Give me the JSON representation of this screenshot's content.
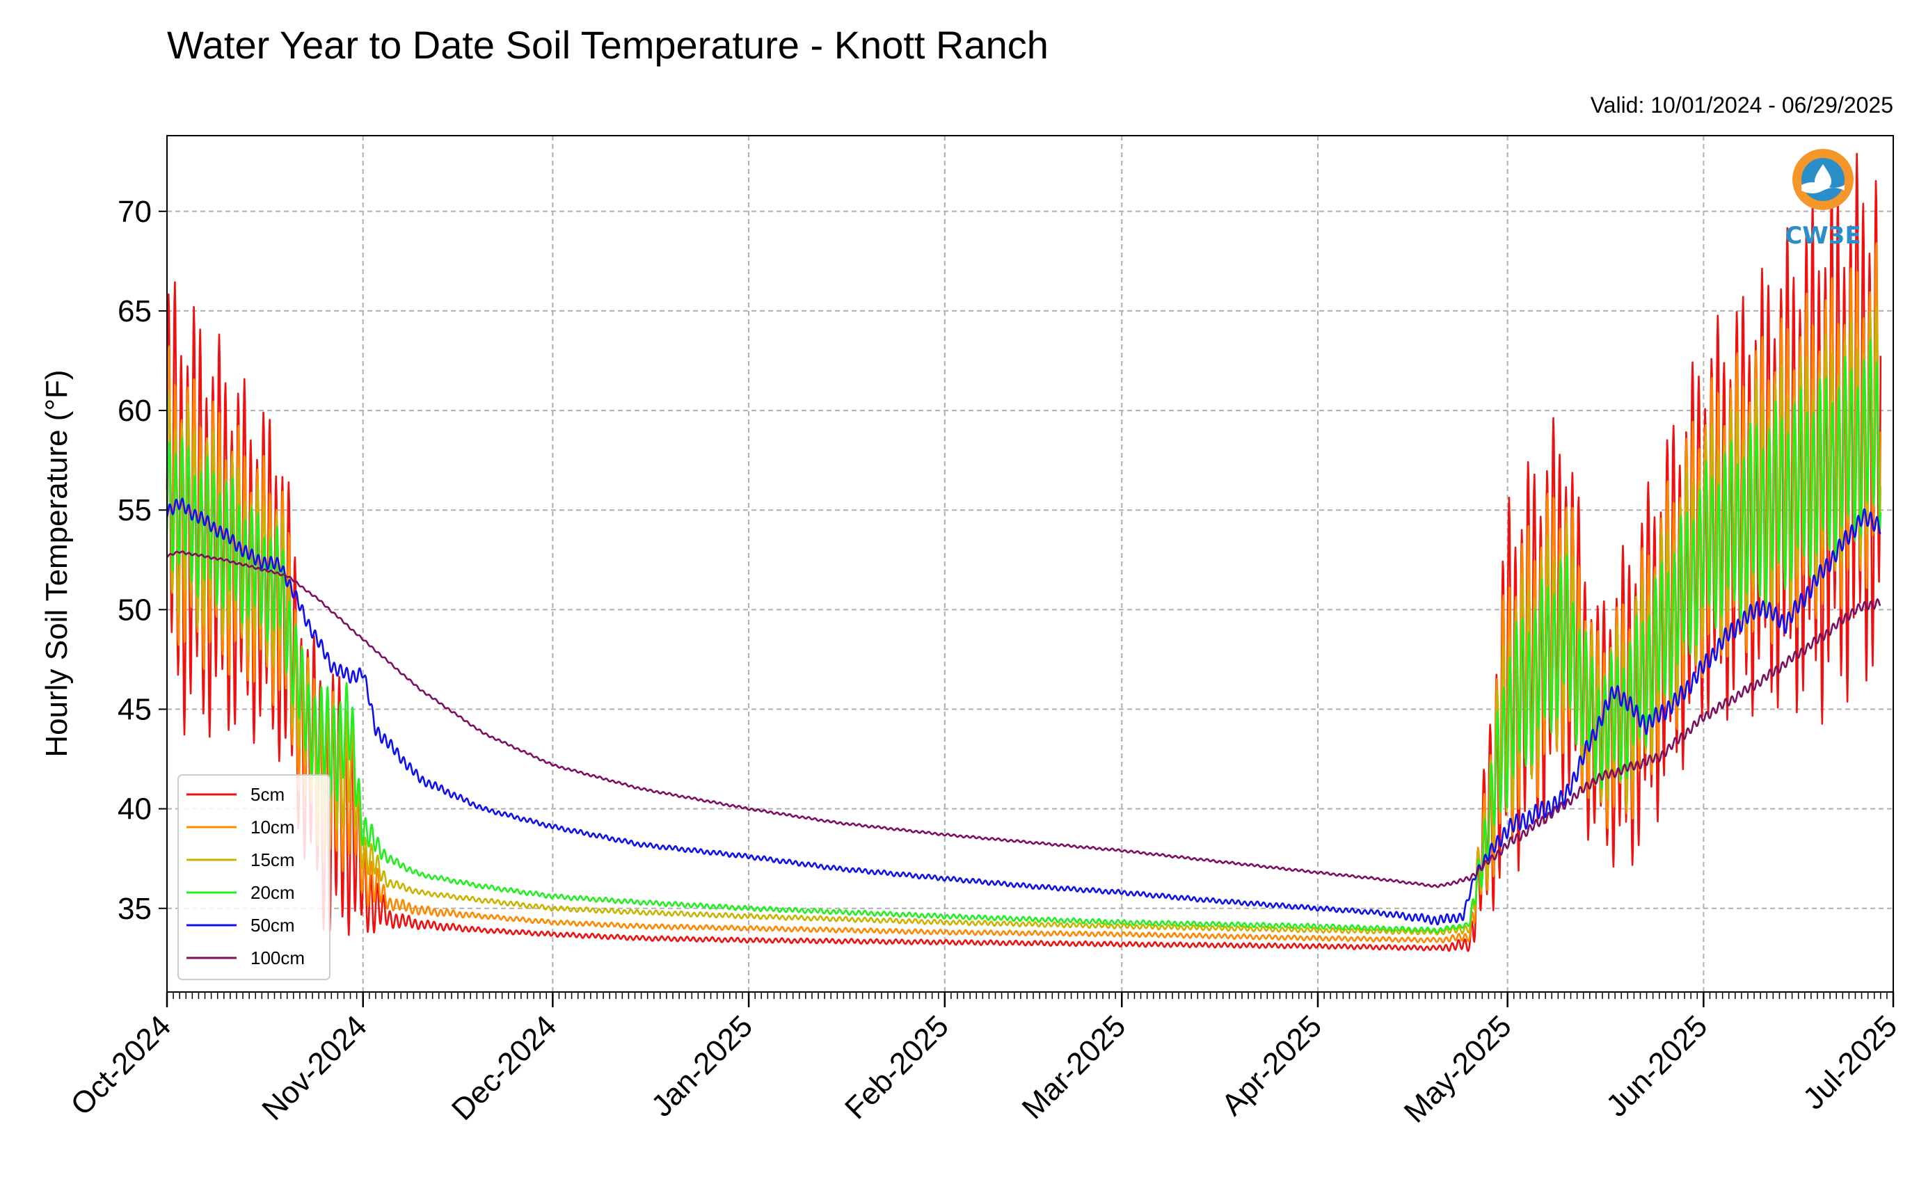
{
  "chart_data": {
    "type": "line",
    "title": "Water Year to Date Soil Temperature - Knott Ranch",
    "subtitle": "Valid: 10/01/2024 - 06/29/2025",
    "xlabel": "",
    "ylabel": "Hourly Soil Temperature (°F)",
    "ylim": [
      30.8,
      73.8
    ],
    "yticks": [
      35,
      40,
      45,
      50,
      55,
      60,
      65,
      70
    ],
    "xlim": [
      "2024-10-01",
      "2025-07-01"
    ],
    "xticks": [
      "2024-10-01",
      "2024-11-01",
      "2024-12-01",
      "2025-01-01",
      "2025-02-01",
      "2025-03-01",
      "2025-04-01",
      "2025-05-01",
      "2025-06-01",
      "2025-07-01"
    ],
    "xtick_labels": [
      "Oct-2024",
      "Nov-2024",
      "Dec-2024",
      "Jan-2025",
      "Feb-2025",
      "Mar-2025",
      "Apr-2025",
      "May-2025",
      "Jun-2025",
      "Jul-2025"
    ],
    "grid": true,
    "legend_position": "lower-left",
    "series": [
      {
        "name": "5cm",
        "color": "#f01010",
        "x": [
          "2024-10-01",
          "2024-10-05",
          "2024-10-10",
          "2024-10-15",
          "2024-10-19",
          "2024-10-23",
          "2024-10-27",
          "2024-10-30",
          "2024-11-01",
          "2024-11-05",
          "2024-11-10",
          "2024-11-20",
          "2024-12-01",
          "2024-12-15",
          "2025-01-01",
          "2025-02-01",
          "2025-03-01",
          "2025-04-01",
          "2025-04-20",
          "2025-04-25",
          "2025-05-01",
          "2025-05-10",
          "2025-05-15",
          "2025-05-20",
          "2025-06-01",
          "2025-06-10",
          "2025-06-20",
          "2025-06-29"
        ],
        "values": [
          56,
          54.5,
          53.5,
          52,
          51,
          43,
          40,
          40,
          36,
          34.5,
          34.2,
          33.9,
          33.7,
          33.5,
          33.4,
          33.3,
          33.2,
          33.1,
          33,
          33.2,
          46,
          50.5,
          44,
          45,
          54,
          56,
          58,
          60
        ],
        "amp": [
          9,
          9,
          8,
          7,
          7,
          5,
          6,
          5,
          2,
          0.4,
          0.2,
          0.1,
          0.1,
          0.1,
          0.1,
          0.1,
          0.1,
          0.1,
          0.1,
          0.3,
          8,
          8,
          5,
          7,
          8,
          9,
          11,
          11
        ]
      },
      {
        "name": "10cm",
        "color": "#ff8800",
        "x": [
          "2024-10-01",
          "2024-10-05",
          "2024-10-10",
          "2024-10-15",
          "2024-10-19",
          "2024-10-23",
          "2024-10-27",
          "2024-10-30",
          "2024-11-01",
          "2024-11-05",
          "2024-11-10",
          "2024-11-20",
          "2024-12-01",
          "2024-12-15",
          "2025-01-01",
          "2025-02-01",
          "2025-03-01",
          "2025-04-01",
          "2025-04-20",
          "2025-04-25",
          "2025-05-01",
          "2025-05-10",
          "2025-05-15",
          "2025-05-20",
          "2025-06-01",
          "2025-06-10",
          "2025-06-20",
          "2025-06-29"
        ],
        "values": [
          56,
          54.5,
          53.5,
          52,
          51,
          43.5,
          41,
          41.5,
          37,
          35.3,
          34.9,
          34.6,
          34.3,
          34.1,
          34,
          33.8,
          33.7,
          33.5,
          33.4,
          33.6,
          45.5,
          50,
          44,
          45,
          54,
          56,
          58,
          60
        ],
        "amp": [
          6,
          6,
          5.5,
          5,
          5,
          3.5,
          4,
          3.5,
          1.5,
          0.3,
          0.2,
          0.1,
          0.1,
          0.1,
          0.1,
          0.1,
          0.1,
          0.1,
          0.1,
          0.2,
          6,
          6,
          4,
          5,
          6,
          6.5,
          7,
          7
        ]
      },
      {
        "name": "15cm",
        "color": "#c8b400",
        "x": [
          "2024-10-01",
          "2024-10-05",
          "2024-10-10",
          "2024-10-15",
          "2024-10-19",
          "2024-10-23",
          "2024-10-27",
          "2024-10-30",
          "2024-11-01",
          "2024-11-05",
          "2024-11-10",
          "2024-11-20",
          "2024-12-01",
          "2024-12-15",
          "2025-01-01",
          "2025-02-01",
          "2025-03-01",
          "2025-04-01",
          "2025-04-20",
          "2025-04-25",
          "2025-05-01",
          "2025-05-10",
          "2025-05-15",
          "2025-05-20",
          "2025-06-01",
          "2025-06-10",
          "2025-06-20",
          "2025-06-29"
        ],
        "values": [
          56,
          54.5,
          53.5,
          52,
          51,
          44,
          42,
          42.5,
          38,
          36.3,
          35.8,
          35.4,
          35,
          34.8,
          34.6,
          34.3,
          34.1,
          33.9,
          33.8,
          34,
          45,
          49.5,
          44,
          45,
          53.5,
          55.5,
          57.5,
          59.5
        ],
        "amp": [
          4.5,
          4.5,
          4,
          3.5,
          3.5,
          2.5,
          3,
          2.5,
          1,
          0.2,
          0.1,
          0.1,
          0.1,
          0.1,
          0.1,
          0.1,
          0.1,
          0.1,
          0.1,
          0.2,
          4.5,
          4.5,
          3,
          4,
          4.5,
          5,
          5,
          5
        ]
      },
      {
        "name": "20cm",
        "color": "#22ee22",
        "x": [
          "2024-10-01",
          "2024-10-05",
          "2024-10-10",
          "2024-10-15",
          "2024-10-19",
          "2024-10-23",
          "2024-10-27",
          "2024-10-30",
          "2024-11-01",
          "2024-11-05",
          "2024-11-10",
          "2024-11-20",
          "2024-12-01",
          "2024-12-15",
          "2025-01-01",
          "2025-02-01",
          "2025-03-01",
          "2025-04-01",
          "2025-04-20",
          "2025-04-25",
          "2025-05-01",
          "2025-05-10",
          "2025-05-15",
          "2025-05-20",
          "2025-06-01",
          "2025-06-10",
          "2025-06-20",
          "2025-06-29"
        ],
        "values": [
          56,
          54.5,
          53.5,
          52,
          51,
          44.5,
          43,
          44,
          39,
          37.5,
          36.7,
          36.1,
          35.6,
          35.3,
          35,
          34.6,
          34.3,
          34.1,
          33.9,
          34.2,
          44.5,
          49,
          44,
          45,
          53,
          55,
          57,
          59
        ],
        "amp": [
          3,
          3,
          3,
          2.5,
          2.5,
          2,
          2.5,
          2,
          0.8,
          0.2,
          0.1,
          0.1,
          0.1,
          0.1,
          0.1,
          0.1,
          0.1,
          0.1,
          0.1,
          0.1,
          3.5,
          3.5,
          2.5,
          3,
          3.5,
          4,
          4,
          4
        ]
      },
      {
        "name": "50cm",
        "color": "#1010ee",
        "x": [
          "2024-10-01",
          "2024-10-03",
          "2024-10-10",
          "2024-10-15",
          "2024-10-19",
          "2024-10-23",
          "2024-10-27",
          "2024-10-30",
          "2024-11-01",
          "2024-11-03",
          "2024-11-10",
          "2024-11-20",
          "2024-12-01",
          "2024-12-15",
          "2025-01-01",
          "2025-01-15",
          "2025-02-01",
          "2025-02-15",
          "2025-03-01",
          "2025-03-15",
          "2025-04-01",
          "2025-04-10",
          "2025-04-20",
          "2025-04-24",
          "2025-04-26",
          "2025-05-01",
          "2025-05-10",
          "2025-05-15",
          "2025-05-18",
          "2025-05-23",
          "2025-05-28",
          "2025-06-05",
          "2025-06-10",
          "2025-06-14",
          "2025-06-20",
          "2025-06-26",
          "2025-06-29"
        ],
        "values": [
          55,
          55.3,
          53.8,
          52.5,
          52.2,
          49.5,
          47.2,
          46.6,
          46.9,
          44,
          41.5,
          40,
          39.1,
          38.2,
          37.6,
          37,
          36.5,
          36.1,
          35.8,
          35.4,
          35,
          34.8,
          34.4,
          34.6,
          36.8,
          39,
          40.5,
          44,
          46,
          44.2,
          45.5,
          48.8,
          50.2,
          49.3,
          52,
          54.6,
          54.3
        ],
        "amp": [
          0.3,
          0.3,
          0.3,
          0.3,
          0.3,
          0.3,
          0.3,
          0.3,
          0.3,
          0.3,
          0.2,
          0.1,
          0.1,
          0.1,
          0.1,
          0.1,
          0.1,
          0.1,
          0.1,
          0.1,
          0.1,
          0.1,
          0.2,
          0.2,
          0.2,
          0.4,
          0.4,
          0.4,
          0.4,
          0.4,
          0.4,
          0.4,
          0.4,
          0.4,
          0.4,
          0.4,
          0.4
        ]
      },
      {
        "name": "100cm",
        "color": "#7a1060",
        "x": [
          "2024-10-01",
          "2024-10-03",
          "2024-10-10",
          "2024-10-20",
          "2024-10-25",
          "2024-11-01",
          "2024-11-10",
          "2024-11-20",
          "2024-12-01",
          "2024-12-15",
          "2025-01-01",
          "2025-01-15",
          "2025-02-01",
          "2025-02-15",
          "2025-03-01",
          "2025-03-15",
          "2025-04-01",
          "2025-04-10",
          "2025-04-20",
          "2025-04-25",
          "2025-05-01",
          "2025-05-10",
          "2025-05-15",
          "2025-05-25",
          "2025-06-01",
          "2025-06-10",
          "2025-06-20",
          "2025-06-25",
          "2025-06-29"
        ],
        "values": [
          52.7,
          52.9,
          52.5,
          51.7,
          50.5,
          48.5,
          46,
          43.8,
          42.2,
          41,
          40,
          39.3,
          38.7,
          38.3,
          37.9,
          37.4,
          36.8,
          36.5,
          36.1,
          36.5,
          38.2,
          40.2,
          41.5,
          42.6,
          44.6,
          46.4,
          48.7,
          50,
          50.4
        ],
        "amp": [
          0.05,
          0.05,
          0.05,
          0.05,
          0.05,
          0.05,
          0.05,
          0.05,
          0.05,
          0.05,
          0.05,
          0.05,
          0.05,
          0.05,
          0.05,
          0.05,
          0.05,
          0.05,
          0.05,
          0.1,
          0.2,
          0.2,
          0.2,
          0.2,
          0.2,
          0.2,
          0.2,
          0.2,
          0.2
        ]
      }
    ]
  },
  "logo": {
    "text": "CW3E",
    "colors": {
      "orange": "#f4962a",
      "blue": "#2a8ec8"
    }
  },
  "style": {
    "grid_color": "#b0b0b0",
    "axis_color": "#000000"
  }
}
